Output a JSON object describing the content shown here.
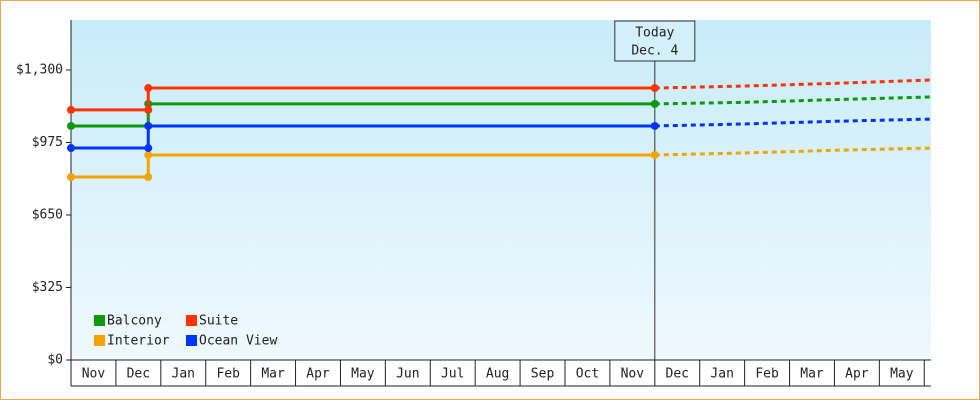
{
  "chart_data": {
    "type": "line",
    "categories": [
      "Nov",
      "Dec",
      "Jan",
      "Feb",
      "Mar",
      "Apr",
      "May",
      "Jun",
      "Jul",
      "Aug",
      "Sep",
      "Oct",
      "Nov",
      "Dec",
      "Jan",
      "Feb",
      "Mar",
      "Apr",
      "May"
    ],
    "xlim": [
      0,
      19.15
    ],
    "ylim": [
      0,
      1524
    ],
    "yticks": [
      {
        "value": 0,
        "label": "$0"
      },
      {
        "value": 325,
        "label": "$325"
      },
      {
        "value": 650,
        "label": "$650"
      },
      {
        "value": 975,
        "label": "$975"
      },
      {
        "value": 1300,
        "label": "$1,300"
      }
    ],
    "legend": "bottom-left",
    "annotation": {
      "x": 13,
      "lines": [
        "Today",
        "Dec. 4"
      ]
    },
    "series": [
      {
        "name": "Balcony",
        "color": "#0a9a0a",
        "x": [
          0,
          1.72,
          1.72,
          13
        ],
        "values": [
          1049,
          1049,
          1148,
          1148
        ],
        "forecast_x": [
          13,
          15,
          17,
          19.15
        ],
        "forecast_values": [
          1148,
          1155,
          1167,
          1179
        ]
      },
      {
        "name": "Suite",
        "color": "#ff3300",
        "x": [
          0,
          1.72,
          1.72,
          13
        ],
        "values": [
          1121,
          1121,
          1219,
          1219
        ],
        "forecast_x": [
          13,
          15,
          17,
          19.15
        ],
        "forecast_values": [
          1219,
          1228,
          1240,
          1255
        ]
      },
      {
        "name": "Interior",
        "color": "#f5a300",
        "x": [
          0,
          1.72,
          1.72,
          13
        ],
        "values": [
          820,
          820,
          919,
          919
        ],
        "forecast_x": [
          13,
          15,
          17,
          19.15
        ],
        "forecast_values": [
          919,
          928,
          940,
          950
        ]
      },
      {
        "name": "Ocean View",
        "color": "#0033ff",
        "x": [
          0,
          1.72,
          1.72,
          13
        ],
        "values": [
          950,
          950,
          1049,
          1049
        ],
        "forecast_x": [
          13,
          15,
          17,
          19.15
        ],
        "forecast_values": [
          1049,
          1058,
          1070,
          1080
        ]
      }
    ]
  }
}
